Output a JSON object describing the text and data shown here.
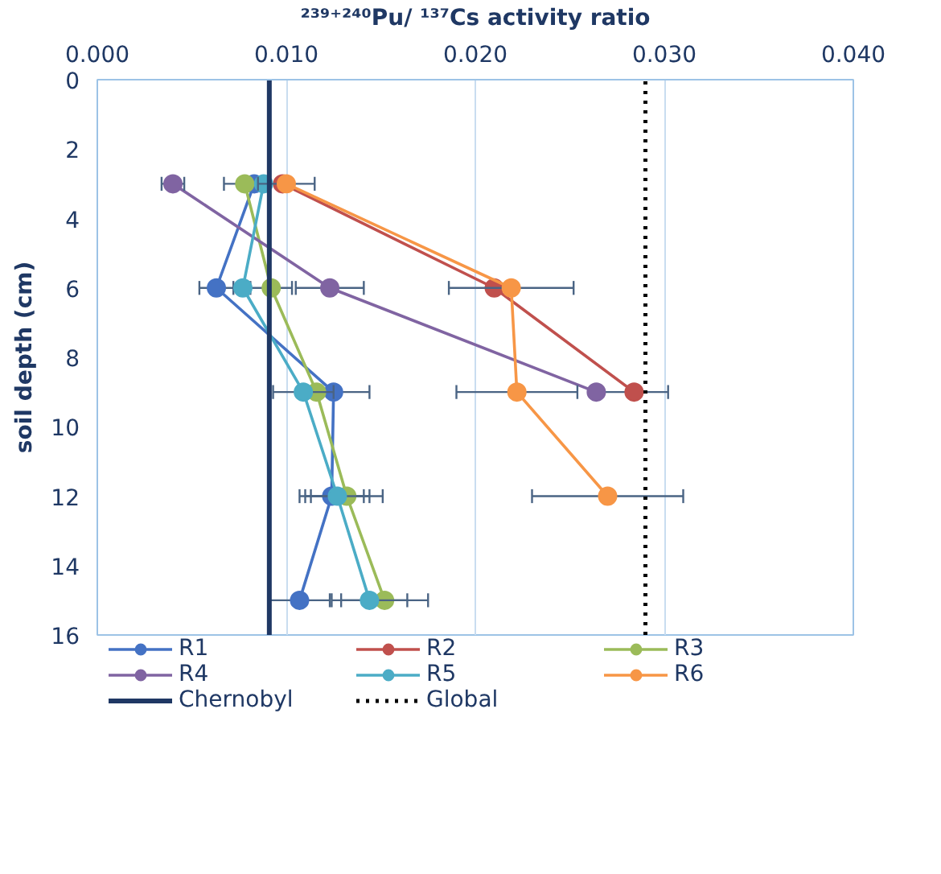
{
  "chart_data": {
    "type": "line",
    "xlabel": "²³⁹⁺²⁴⁰Pu/ ¹³⁷Cs activity ratio",
    "ylabel": "soil depth (cm)",
    "xlim": [
      0,
      0.04
    ],
    "xticks": [
      {
        "value": 0,
        "label": "0.000"
      },
      {
        "value": 0.01,
        "label": "0.010"
      },
      {
        "value": 0.02,
        "label": "0.020"
      },
      {
        "value": 0.03,
        "label": "0.030"
      },
      {
        "value": 0.04,
        "label": "0.040"
      }
    ],
    "ylim": [
      16,
      0
    ],
    "yticks": [
      0,
      2,
      4,
      6,
      8,
      10,
      12,
      14,
      16
    ],
    "grid": "x",
    "legend": "bottom",
    "marker": "circle",
    "series": [
      {
        "name": "R1",
        "color": "#4472c4",
        "x": [
          0.0083,
          0.0063,
          0.0125,
          0.0124,
          0.0107
        ],
        "values": [
          3,
          6,
          9,
          12,
          15
        ],
        "xerrors": [
          null,
          0.0009,
          0.0019,
          0.0017,
          0.0016
        ]
      },
      {
        "name": "R2",
        "color": "#c0504d",
        "x": [
          0.0098,
          0.021,
          0.0284
        ],
        "values": [
          3,
          6,
          9
        ],
        "xerrors": [
          null,
          null,
          0.0018
        ]
      },
      {
        "name": "R3",
        "color": "#9bbb59",
        "x": [
          0.0078,
          0.0092,
          0.0116,
          0.0132,
          0.0152
        ],
        "values": [
          3,
          6,
          9,
          12,
          15
        ],
        "xerrors": [
          0.0011,
          0.0011,
          null,
          0.0019,
          0.0023
        ]
      },
      {
        "name": "R4",
        "color": "#8064a2",
        "x": [
          0.004,
          0.0123,
          0.0264
        ],
        "values": [
          3,
          6,
          9
        ],
        "xerrors": [
          0.0006,
          0.0018,
          null
        ]
      },
      {
        "name": "R5",
        "color": "#4bacc6",
        "x": [
          0.0088,
          0.0077,
          0.0109,
          0.0127,
          0.0144
        ],
        "values": [
          3,
          6,
          9,
          12,
          15
        ],
        "xerrors": [
          null,
          null,
          0.0016,
          0.0017,
          0.002
        ]
      },
      {
        "name": "R6",
        "color": "#f79646",
        "x": [
          0.01,
          0.0219,
          0.0222,
          0.027
        ],
        "values": [
          3,
          6,
          9,
          12
        ],
        "xerrors": [
          0.0015,
          0.0033,
          0.0032,
          0.004
        ]
      }
    ],
    "ref_lines": [
      {
        "axis": "x",
        "value": 0.0091,
        "label": "Chernobyl",
        "color": "#1f3864",
        "line_style": "solid"
      },
      {
        "axis": "x",
        "value": 0.029,
        "label": "Global",
        "color": "#000000",
        "line_style": "dotted"
      }
    ]
  }
}
